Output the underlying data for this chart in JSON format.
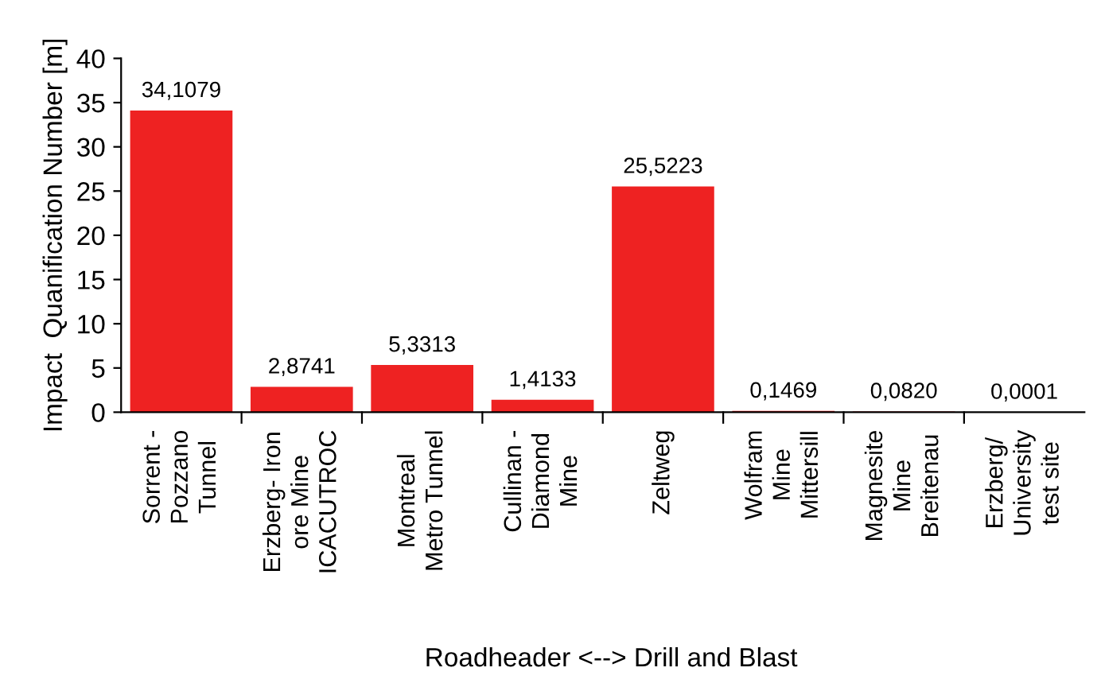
{
  "chart_data": {
    "type": "bar",
    "categories": [
      "Sorrent -\nPozzano\nTunnel",
      "Erzberg- Iron\nore Mine\nICACUTROC",
      "Montreal\nMetro Tunnel",
      "Cullinan -\nDiamond\nMine",
      "Zeltweg",
      "Wolfram\nMine\nMittersill",
      "Magnesite\nMine\nBreitenau",
      "Erzberg/\nUniversity\ntest site"
    ],
    "values": [
      34.1079,
      2.8741,
      5.3313,
      1.4133,
      25.5223,
      0.1469,
      0.082,
      0.0001
    ],
    "value_labels": [
      "34,1079",
      "2,8741",
      "5,3313",
      "1,4133",
      "25,5223",
      "0,1469",
      "0,0820",
      "0,0001"
    ],
    "color": "#ee2222",
    "xlabel": "Roadheader <--> Drill and Blast",
    "ylabel": "Impact  Quanification Number [m]",
    "ylim": [
      0,
      40
    ],
    "yticks": [
      0,
      5,
      10,
      15,
      20,
      25,
      30,
      35,
      40
    ],
    "grid": false,
    "legend": false
  }
}
